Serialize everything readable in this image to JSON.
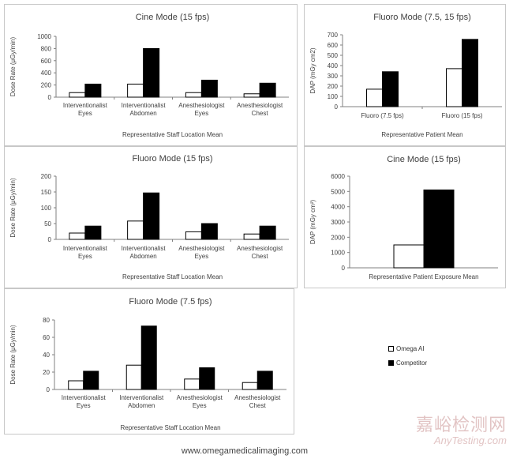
{
  "colors": {
    "series_a": "#ffffff",
    "series_b": "#000000",
    "axis": "#808080",
    "text": "#404040"
  },
  "legend": {
    "items": [
      "Omega AI",
      "Competitor"
    ]
  },
  "footer": {
    "url": "www.omegamedicalimaging.com"
  },
  "watermark": {
    "cn": "嘉峪检测网",
    "en": "AnyTesting.com"
  },
  "chart_data": [
    {
      "type": "bar",
      "title": "Cine Mode (15 fps)",
      "ylabel": "Dose Rate (μGy/min)",
      "xlabel": "Representative Staff Location Mean",
      "categories": [
        [
          "Interventionalist",
          "Eyes"
        ],
        [
          "Interventionalist",
          "Abdomen"
        ],
        [
          "Anesthesiologist",
          "Eyes"
        ],
        [
          "Anesthesiologist",
          "Chest"
        ]
      ],
      "ylim": [
        0,
        1000
      ],
      "yticks": [
        0,
        200,
        400,
        600,
        800,
        1000
      ],
      "series": [
        {
          "name": "Omega AI",
          "values": [
            75,
            215,
            75,
            55
          ]
        },
        {
          "name": "Competitor",
          "values": [
            215,
            800,
            280,
            230
          ]
        }
      ]
    },
    {
      "type": "bar",
      "title": "Fluoro Mode (7.5, 15 fps)",
      "ylabel": "DAP (mGy cm2)",
      "xlabel": "Representative Patient Mean",
      "categories": [
        [
          "Fluoro (7.5 fps)"
        ],
        [
          "Fluoro (15 fps)"
        ]
      ],
      "ylim": [
        0,
        700
      ],
      "yticks": [
        0,
        100,
        200,
        300,
        400,
        500,
        600,
        700
      ],
      "series": [
        {
          "name": "Omega AI",
          "values": [
            170,
            370
          ]
        },
        {
          "name": "Competitor",
          "values": [
            340,
            655
          ]
        }
      ]
    },
    {
      "type": "bar",
      "title": "Fluoro Mode (15 fps)",
      "ylabel": "Dose Rate (μGy/min)",
      "xlabel": "Representative Staff Location Mean",
      "categories": [
        [
          "Interventionalist",
          "Eyes"
        ],
        [
          "Interventionalist",
          "Abdomen"
        ],
        [
          "Anesthesiologist",
          "Eyes"
        ],
        [
          "Anesthesiologist",
          "Chest"
        ]
      ],
      "ylim": [
        0,
        200
      ],
      "yticks": [
        0,
        50,
        100,
        150,
        200
      ],
      "series": [
        {
          "name": "Omega AI",
          "values": [
            20,
            58,
            24,
            17
          ]
        },
        {
          "name": "Competitor",
          "values": [
            42,
            147,
            50,
            42
          ]
        }
      ]
    },
    {
      "type": "bar",
      "title": "Cine Mode (15 fps)",
      "ylabel": "DAP (mGy cm²)",
      "xlabel": "Representative Patient Exposure Mean",
      "categories": [
        [
          ""
        ]
      ],
      "ylim": [
        0,
        6000
      ],
      "yticks": [
        0,
        1000,
        2000,
        3000,
        4000,
        5000,
        6000
      ],
      "series": [
        {
          "name": "Omega AI",
          "values": [
            1500
          ]
        },
        {
          "name": "Competitor",
          "values": [
            5100
          ]
        }
      ]
    },
    {
      "type": "bar",
      "title": "Fluoro Mode (7.5 fps)",
      "ylabel": "Dose Rate (μGy/min)",
      "xlabel": "Representative Staff Location Mean",
      "categories": [
        [
          "Interventionalist",
          "Eyes"
        ],
        [
          "Interventionalist",
          "Abdomen"
        ],
        [
          "Anesthesiologist",
          "Eyes"
        ],
        [
          "Anesthesiologist",
          "Chest"
        ]
      ],
      "ylim": [
        0,
        80
      ],
      "yticks": [
        0,
        20,
        40,
        60,
        80
      ],
      "series": [
        {
          "name": "Omega AI",
          "values": [
            10,
            28,
            12,
            8
          ]
        },
        {
          "name": "Competitor",
          "values": [
            21,
            73,
            25,
            21
          ]
        }
      ]
    }
  ]
}
